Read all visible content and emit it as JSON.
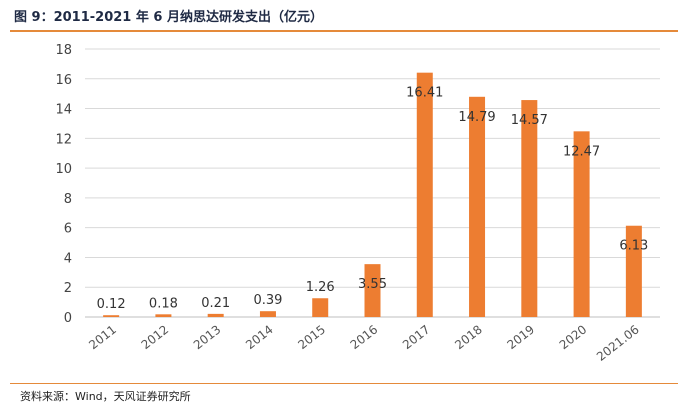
{
  "figure": {
    "title": "图 9：2011-2021 年 6 月纳思达研发支出（亿元）",
    "source": "资料来源：Wind，天风证券研究所"
  },
  "colors": {
    "bar": "#ED7D31",
    "accent_rule": "#E58A3A",
    "grid": "#D9D9D9"
  },
  "chart_data": {
    "type": "bar",
    "title": "图 9：2011-2021 年 6 月纳思达研发支出（亿元）",
    "categories": [
      "2011",
      "2012",
      "2013",
      "2014",
      "2015",
      "2016",
      "2017",
      "2018",
      "2019",
      "2020",
      "2021.06"
    ],
    "values": [
      0.12,
      0.18,
      0.21,
      0.39,
      1.26,
      3.55,
      16.41,
      14.79,
      14.57,
      12.47,
      6.13
    ],
    "data_labels": [
      "0.12",
      "0.18",
      "0.21",
      "0.39",
      "1.26",
      "3.55",
      "16.41",
      "14.79",
      "14.57",
      "12.47",
      "6.13"
    ],
    "ylim": [
      0,
      18
    ],
    "yticks": [
      "0",
      "2",
      "4",
      "6",
      "8",
      "10",
      "12",
      "14",
      "16",
      "18"
    ],
    "xlabel": "",
    "ylabel": "",
    "grid": true,
    "legend": "none"
  }
}
